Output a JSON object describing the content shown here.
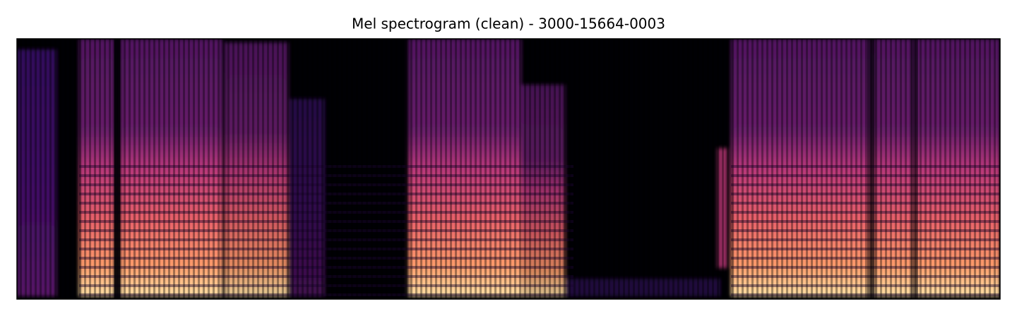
{
  "chart_data": {
    "type": "image",
    "title": "Mel spectrogram (clean) - 3000-15664-0003"
  }
}
